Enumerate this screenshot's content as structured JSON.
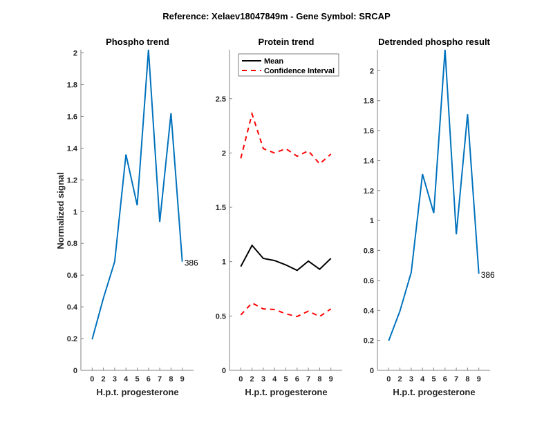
{
  "figure": {
    "suptitle": "Reference:  Xelaev18047849m - Gene Symbol:  SRCAP"
  },
  "colors": {
    "phospho": "#0072BD",
    "mean": "#000000",
    "ci": "#FF0000",
    "axis": "#808080",
    "text": "#262626"
  },
  "chart_data": [
    {
      "type": "line",
      "title": "Phospho trend",
      "xlabel": "H.p.t. progesterone",
      "ylabel": "Normalized signal",
      "categories": [
        "0",
        "2",
        "3",
        "4",
        "5",
        "6",
        "7",
        "8",
        "9"
      ],
      "ylim": [
        0,
        2.02
      ],
      "yticks": [
        0,
        0.2,
        0.4,
        0.6,
        0.8,
        1,
        1.2,
        1.4,
        1.6,
        1.8,
        2
      ],
      "ytick_labels": [
        "0",
        "0.2",
        "0.4",
        "0.6",
        "0.8",
        "1",
        "1.2",
        "1.4",
        "1.6",
        "1.8",
        "2"
      ],
      "series": [
        {
          "name": "Phospho",
          "style": "solid",
          "color_key": "phospho",
          "values": [
            0.195,
            0.455,
            0.685,
            1.36,
            1.04,
            2.02,
            0.935,
            1.62,
            0.685
          ]
        }
      ],
      "annotation": {
        "text": "386",
        "at_index": 8
      },
      "legend": null
    },
    {
      "type": "line",
      "title": "Protein trend",
      "xlabel": "H.p.t. progesterone",
      "ylabel": "",
      "categories": [
        "0",
        "2",
        "3",
        "4",
        "5",
        "6",
        "7",
        "8",
        "9"
      ],
      "ylim": [
        0,
        2.95
      ],
      "yticks": [
        0,
        0.5,
        1,
        1.5,
        2,
        2.5
      ],
      "ytick_labels": [
        "0",
        "0.5",
        "1",
        "1.5",
        "2",
        "2.5"
      ],
      "series": [
        {
          "name": "Mean",
          "style": "solid",
          "color_key": "mean",
          "values": [
            0.955,
            1.15,
            1.03,
            1.01,
            0.97,
            0.92,
            1.005,
            0.93,
            1.03
          ]
        },
        {
          "name": "Confidence Interval",
          "style": "dashed",
          "color_key": "ci",
          "values": [
            1.95,
            2.36,
            2.04,
            2.0,
            2.04,
            1.97,
            2.02,
            1.9,
            1.99
          ]
        },
        {
          "name": "Confidence Interval (lower)",
          "style": "dashed",
          "color_key": "ci",
          "in_legend": false,
          "values": [
            0.51,
            0.62,
            0.565,
            0.56,
            0.52,
            0.495,
            0.545,
            0.495,
            0.565
          ]
        }
      ],
      "annotation": null,
      "legend": {
        "position": "top",
        "entries": [
          "Mean",
          "Confidence Interval"
        ]
      }
    },
    {
      "type": "line",
      "title": "Detrended phospho result",
      "xlabel": "H.p.t. progesterone",
      "ylabel": "",
      "categories": [
        "0",
        "2",
        "3",
        "4",
        "5",
        "6",
        "7",
        "8",
        "9"
      ],
      "ylim": [
        0,
        2.14
      ],
      "yticks": [
        0,
        0.2,
        0.4,
        0.6,
        0.8,
        1,
        1.2,
        1.4,
        1.6,
        1.8,
        2
      ],
      "ytick_labels": [
        "0",
        "0.2",
        "0.4",
        "0.6",
        "0.8",
        "1",
        "1.2",
        "1.4",
        "1.6",
        "1.8",
        "2"
      ],
      "series": [
        {
          "name": "Detrended phospho",
          "style": "solid",
          "color_key": "phospho",
          "values": [
            0.198,
            0.396,
            0.654,
            1.31,
            1.05,
            2.14,
            0.908,
            1.71,
            0.645
          ]
        }
      ],
      "annotation": {
        "text": "386",
        "at_index": 8
      },
      "legend": null
    }
  ]
}
